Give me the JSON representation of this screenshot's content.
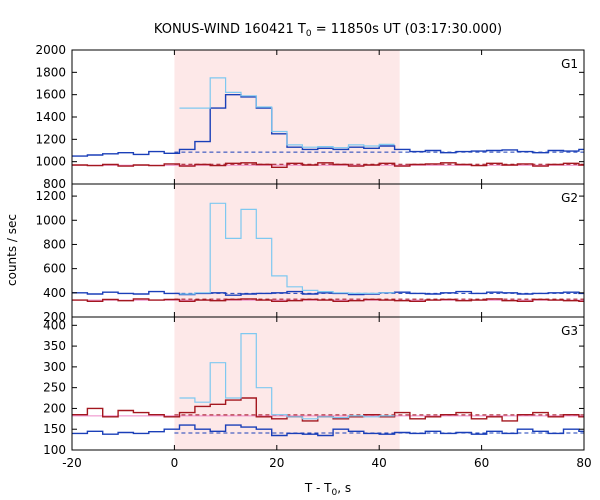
{
  "title": "KONUS-WIND 160421 T",
  "title_sub": "0",
  "title_rest": " = 11850s UT (03:17:30.000)",
  "ylabel": "counts / sec",
  "xlabel": "T - T",
  "xlabel_sub": "0",
  "xlabel_rest": ", s",
  "colors": {
    "background_band": "#fde8e8",
    "series_a": "#1a3fb8",
    "series_b": "#a3171f",
    "series_sum": "#7ec8f0",
    "fit_line_pink": "#ee88c8",
    "axis": "#000000"
  },
  "chart_data": [
    {
      "type": "line",
      "panel_label": "G1",
      "xlim": [
        -20,
        80
      ],
      "ylim": [
        800,
        2000
      ],
      "yticks": [
        800,
        1000,
        1200,
        1400,
        1600,
        1800,
        2000
      ],
      "xticks": [
        -20,
        0,
        20,
        40,
        60,
        80
      ],
      "highlight_range": [
        0,
        44
      ],
      "background_levels": {
        "series_a": 1085,
        "series_b": 968
      },
      "x": [
        -20,
        -17,
        -14,
        -11,
        -8,
        -5,
        -2,
        1,
        4,
        7,
        10,
        13,
        16,
        19,
        22,
        25,
        28,
        31,
        34,
        37,
        40,
        43,
        46,
        49,
        52,
        55,
        58,
        61,
        64,
        67,
        70,
        73,
        76,
        79,
        80
      ],
      "series": [
        {
          "key": "series_a",
          "values": [
            1050,
            1060,
            1070,
            1080,
            1065,
            1090,
            1075,
            1110,
            1180,
            1480,
            1600,
            1580,
            1480,
            1250,
            1130,
            1110,
            1120,
            1110,
            1130,
            1120,
            1140,
            1110,
            1090,
            1100,
            1080,
            1090,
            1095,
            1100,
            1105,
            1090,
            1080,
            1100,
            1095,
            1110,
            1110
          ]
        },
        {
          "key": "series_b",
          "values": [
            970,
            965,
            975,
            960,
            970,
            965,
            980,
            960,
            975,
            965,
            985,
            990,
            975,
            950,
            985,
            970,
            990,
            975,
            960,
            970,
            985,
            960,
            975,
            980,
            990,
            975,
            965,
            985,
            970,
            980,
            960,
            975,
            985,
            970,
            970
          ]
        },
        {
          "key": "series_sum",
          "values": [
            null,
            null,
            null,
            null,
            null,
            null,
            null,
            1480,
            1480,
            1750,
            1620,
            1590,
            1490,
            1270,
            1150,
            1130,
            1135,
            1125,
            1150,
            1140,
            1155,
            null,
            null,
            null,
            null,
            null,
            null,
            null,
            null,
            null,
            null,
            null,
            null,
            null,
            null
          ]
        }
      ]
    },
    {
      "type": "line",
      "panel_label": "G2",
      "xlim": [
        -20,
        80
      ],
      "ylim": [
        200,
        1300
      ],
      "yticks": [
        200,
        400,
        600,
        800,
        1000,
        1200
      ],
      "xticks": [
        -20,
        0,
        20,
        40,
        60,
        80
      ],
      "highlight_range": [
        0,
        44
      ],
      "background_levels": {
        "series_a": 395,
        "series_b": 340
      },
      "x": [
        -20,
        -17,
        -14,
        -11,
        -8,
        -5,
        -2,
        1,
        4,
        7,
        10,
        13,
        16,
        19,
        22,
        25,
        28,
        31,
        34,
        37,
        40,
        43,
        46,
        49,
        52,
        55,
        58,
        61,
        64,
        67,
        70,
        73,
        76,
        79,
        80
      ],
      "series": [
        {
          "key": "series_a",
          "values": [
            400,
            390,
            405,
            395,
            390,
            410,
            395,
            385,
            395,
            400,
            380,
            390,
            395,
            400,
            410,
            390,
            400,
            395,
            385,
            390,
            400,
            405,
            395,
            390,
            400,
            410,
            395,
            405,
            400,
            390,
            395,
            400,
            405,
            395,
            395
          ]
        },
        {
          "key": "series_b",
          "values": [
            340,
            330,
            345,
            335,
            350,
            340,
            345,
            330,
            340,
            335,
            345,
            350,
            340,
            330,
            335,
            345,
            340,
            330,
            335,
            345,
            340,
            335,
            330,
            340,
            345,
            335,
            340,
            350,
            335,
            330,
            345,
            340,
            335,
            330,
            330
          ]
        },
        {
          "key": "series_sum",
          "values": [
            null,
            null,
            null,
            null,
            null,
            null,
            null,
            390,
            400,
            1140,
            850,
            1090,
            850,
            540,
            450,
            420,
            410,
            400,
            395,
            395,
            400,
            null,
            null,
            null,
            null,
            null,
            null,
            null,
            null,
            null,
            null,
            null,
            null,
            null,
            null
          ]
        }
      ]
    },
    {
      "type": "line",
      "panel_label": "G3",
      "xlim": [
        -20,
        80
      ],
      "ylim": [
        100,
        420
      ],
      "yticks": [
        100,
        150,
        200,
        250,
        300,
        350,
        400
      ],
      "xticks": [
        -20,
        0,
        20,
        40,
        60,
        80
      ],
      "highlight_range": [
        0,
        44
      ],
      "background_levels": {
        "series_a": 141,
        "series_b": 182
      },
      "x": [
        -20,
        -17,
        -14,
        -11,
        -8,
        -5,
        -2,
        1,
        4,
        7,
        10,
        13,
        16,
        19,
        22,
        25,
        28,
        31,
        34,
        37,
        40,
        43,
        46,
        49,
        52,
        55,
        58,
        61,
        64,
        67,
        70,
        73,
        76,
        79,
        80
      ],
      "series": [
        {
          "key": "series_a",
          "values": [
            140,
            145,
            138,
            142,
            140,
            144,
            150,
            160,
            150,
            145,
            160,
            155,
            150,
            135,
            140,
            138,
            135,
            150,
            145,
            140,
            138,
            142,
            140,
            145,
            140,
            142,
            138,
            145,
            140,
            150,
            145,
            140,
            150,
            145,
            145
          ]
        },
        {
          "key": "series_b",
          "values": [
            185,
            200,
            180,
            195,
            190,
            185,
            180,
            190,
            205,
            210,
            220,
            225,
            180,
            175,
            180,
            170,
            180,
            175,
            180,
            185,
            180,
            190,
            175,
            180,
            185,
            190,
            175,
            180,
            170,
            185,
            190,
            180,
            185,
            180,
            180
          ]
        },
        {
          "key": "series_sum",
          "values": [
            null,
            null,
            null,
            null,
            null,
            null,
            null,
            225,
            215,
            310,
            225,
            380,
            250,
            185,
            180,
            175,
            180,
            178,
            182,
            180,
            182,
            null,
            null,
            null,
            null,
            null,
            null,
            null,
            null,
            null,
            null,
            null,
            null,
            null,
            null
          ]
        }
      ]
    }
  ]
}
